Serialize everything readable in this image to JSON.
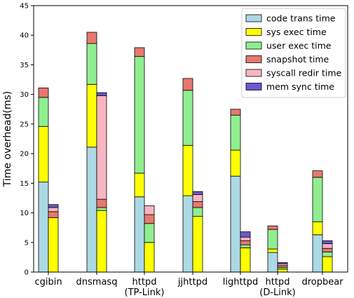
{
  "chart_data": {
    "type": "bar",
    "stacked": true,
    "grouped": true,
    "ylabel": "Time overhead(ms)",
    "ylim": [
      0,
      45
    ],
    "yticks": [
      0,
      5,
      10,
      15,
      20,
      25,
      30,
      35,
      40,
      45
    ],
    "grid": false,
    "legend_position": "top-right",
    "categories": [
      {
        "lines": [
          "cgibin"
        ]
      },
      {
        "lines": [
          "dnsmasq"
        ]
      },
      {
        "lines": [
          "httpd",
          "(TP-Link)"
        ]
      },
      {
        "lines": [
          "jjhttpd"
        ]
      },
      {
        "lines": [
          "lighttpd"
        ]
      },
      {
        "lines": [
          "httpd",
          "(D-Link)"
        ]
      },
      {
        "lines": [
          "dropbear"
        ]
      }
    ],
    "series": [
      {
        "name": "code trans time",
        "color": "#add8e6"
      },
      {
        "name": "sys exec time",
        "color": "#ffff00"
      },
      {
        "name": "user exec time",
        "color": "#90ee90"
      },
      {
        "name": "snapshot time",
        "color": "#e8776f"
      },
      {
        "name": "syscall redir time",
        "color": "#f7b6c2"
      },
      {
        "name": "mem sync time",
        "color": "#6a5acd"
      }
    ],
    "groups": [
      {
        "category": 0,
        "bars": [
          [
            15.2,
            9.4,
            4.9,
            1.6,
            0,
            0
          ],
          [
            0,
            9.2,
            0,
            1.0,
            0.7,
            0.5
          ]
        ]
      },
      {
        "category": 1,
        "bars": [
          [
            21.1,
            10.6,
            6.9,
            1.9,
            0,
            0
          ],
          [
            0,
            10.4,
            0.5,
            1.4,
            17.5,
            0.5
          ]
        ]
      },
      {
        "category": 2,
        "bars": [
          [
            12.7,
            4.0,
            19.7,
            1.5,
            0,
            0
          ],
          [
            0,
            5.0,
            3.2,
            1.5,
            1.5,
            0
          ]
        ]
      },
      {
        "category": 3,
        "bars": [
          [
            12.9,
            8.5,
            9.3,
            2.0,
            0,
            0
          ],
          [
            0,
            9.4,
            1.5,
            1.0,
            1.2,
            0.5
          ]
        ]
      },
      {
        "category": 4,
        "bars": [
          [
            16.2,
            4.4,
            5.9,
            1.0,
            0,
            0
          ],
          [
            0,
            4.1,
            0.5,
            0.7,
            0.6,
            0.9
          ]
        ]
      },
      {
        "category": 5,
        "bars": [
          [
            3.3,
            0.6,
            3.3,
            0.6,
            0,
            0
          ],
          [
            0,
            0.5,
            0.3,
            0.3,
            0.3,
            0.2
          ]
        ]
      },
      {
        "category": 6,
        "bars": [
          [
            6.3,
            2.2,
            7.5,
            1.1,
            0,
            0
          ],
          [
            0,
            2.6,
            0.8,
            0.6,
            0.8,
            0.5
          ]
        ]
      }
    ]
  }
}
